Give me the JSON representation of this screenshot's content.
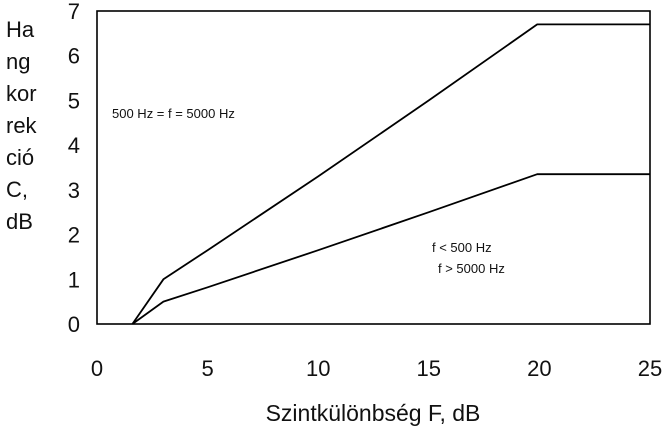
{
  "chart_data": {
    "type": "line",
    "xlabel": "Szintkülönbség F, dB",
    "ylabel_lines": [
      "Ha",
      "ng",
      "kor",
      "rek",
      "ció",
      "C,",
      "dB"
    ],
    "xlim": [
      0,
      25
    ],
    "ylim": [
      0,
      7
    ],
    "xticks": [
      0,
      5,
      10,
      15,
      20,
      25
    ],
    "yticks": [
      0,
      1,
      2,
      3,
      4,
      5,
      6,
      7
    ],
    "grid": false,
    "series": [
      {
        "name": "500 Hz = f = 5000 Hz",
        "x": [
          1.6,
          3.0,
          5.0,
          10.0,
          15.0,
          19.9,
          25.0
        ],
        "y": [
          0.0,
          1.0,
          1.65,
          3.3,
          5.0,
          6.7,
          6.7
        ]
      },
      {
        "name": "f < 500 Hz  f > 5000 Hz",
        "x": [
          1.6,
          3.0,
          5.0,
          10.0,
          15.0,
          19.9,
          25.0
        ],
        "y": [
          0.0,
          0.5,
          0.82,
          1.65,
          2.5,
          3.35,
          3.35
        ]
      }
    ],
    "annotations": {
      "upper": "500 Hz = f = 5000 Hz",
      "lower_line1": "f < 500 Hz",
      "lower_line2": "f > 5000 Hz"
    }
  }
}
